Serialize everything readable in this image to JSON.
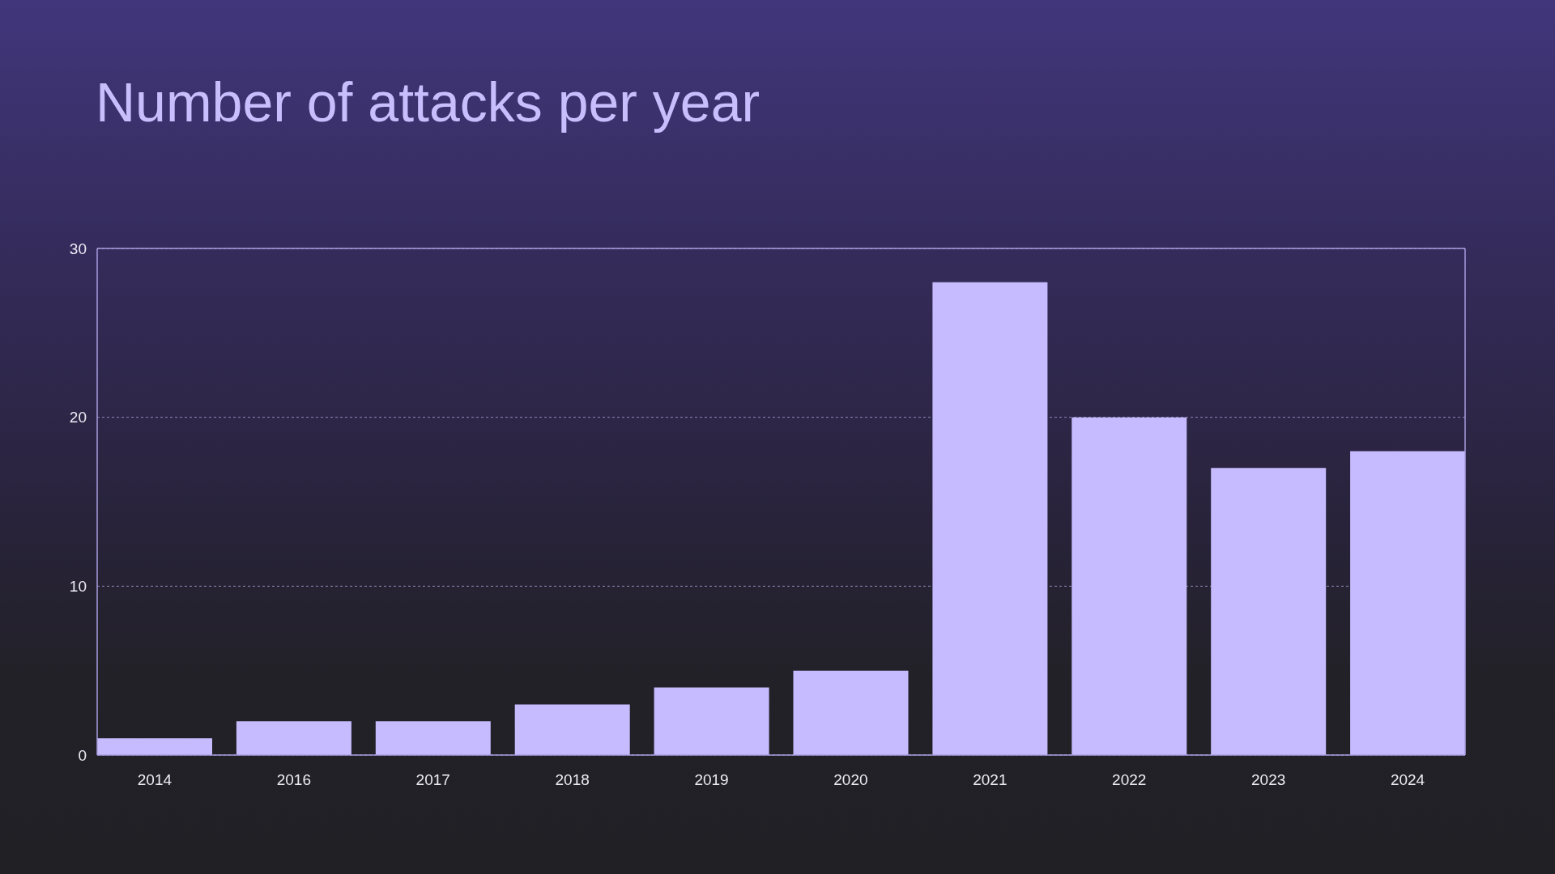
{
  "chart_data": {
    "type": "bar",
    "title": "Number of attacks per year",
    "categories": [
      "2014",
      "2016",
      "2017",
      "2018",
      "2019",
      "2020",
      "2021",
      "2022",
      "2023",
      "2024"
    ],
    "values": [
      1,
      2,
      2,
      3,
      4,
      5,
      28,
      20,
      17,
      18
    ],
    "color": "#c6bbff",
    "ylim": [
      0,
      30
    ],
    "yticks": [
      0,
      10,
      20,
      30
    ],
    "grid": "y"
  }
}
